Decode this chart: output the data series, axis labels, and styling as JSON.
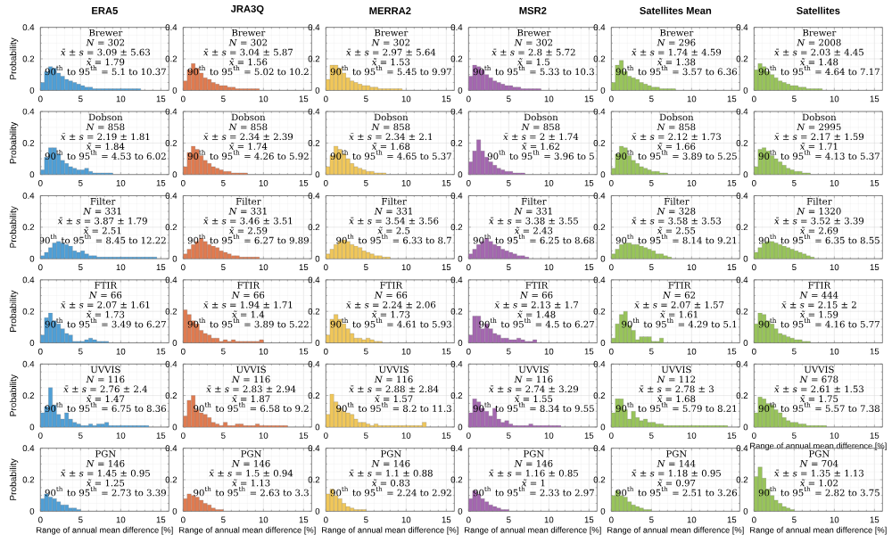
{
  "chart_data": [
    {
      "type": "histogram",
      "title": "ERA5",
      "ylabel": "Probability",
      "annotations": [
        "Brewer",
        "*N* = 302",
        "*x̄* ± *s* = 3.09 ± 5.63",
        "*x̃* = 1.79",
        "90$^{th}$ to 95$^{th}$ = 5.1 to 10.37"
      ],
      "bins": [
        0,
        0.5,
        1,
        1.5,
        2,
        2.5,
        3,
        3.5,
        4,
        4.5,
        5,
        5.5,
        6,
        6.5,
        7,
        7.5,
        8,
        8.5,
        9,
        9.5,
        10,
        10.5,
        11,
        11.5,
        12,
        12.5
      ],
      "values": [
        0.05,
        0.12,
        0.15,
        0.14,
        0.11,
        0.09,
        0.07,
        0.06,
        0.05,
        0.04,
        0.03,
        0.02,
        0.02,
        0.01,
        0.01,
        0.01,
        0.01,
        0.01,
        0.01,
        0.01,
        0.01,
        0.01,
        0.01,
        0.01,
        0.01
      ],
      "color": "#4f9fd6",
      "xlim": [
        0,
        16
      ],
      "ylim": [
        0,
        0.4
      ],
      "xticks": [
        0,
        5,
        10,
        15
      ],
      "yticks": [
        0,
        0.2,
        0.4
      ],
      "grid": true
    },
    {
      "type": "histogram",
      "title": "JRA3Q",
      "annotations": [
        "Brewer",
        "*N* = 302",
        "*x̄* ± *s* = 3.04 ± 5.87",
        "*x̃* = 1.56",
        "90$^{th}$ to 95$^{th}$ = 5.02 to 10.2"
      ],
      "bins": [
        0,
        0.5,
        1,
        1.5,
        2,
        2.5,
        3,
        3.5,
        4,
        4.5,
        5,
        5.5,
        6,
        6.5,
        7,
        7.5,
        8,
        8.5,
        9,
        9.5
      ],
      "values": [
        0.06,
        0.13,
        0.17,
        0.14,
        0.11,
        0.08,
        0.07,
        0.05,
        0.04,
        0.03,
        0.03,
        0.02,
        0.02,
        0.01,
        0.01,
        0.01,
        0.01,
        0.01,
        0.01
      ],
      "color": "#e07b50",
      "xlim": [
        0,
        16
      ],
      "ylim": [
        0,
        0.4
      ],
      "xticks": [
        0,
        5,
        10,
        15
      ],
      "yticks": [
        0,
        0.2,
        0.4
      ],
      "grid": true
    },
    {
      "type": "histogram",
      "title": "MERRA2",
      "annotations": [
        "Brewer",
        "*N* = 302",
        "*x̄* ± *s* = 2.97 ± 5.64",
        "*x̃* = 1.53",
        "90$^{th}$ to 95$^{th}$ = 5.45 to 9.97"
      ],
      "bins": [
        0,
        0.5,
        1,
        1.5,
        2,
        2.5,
        3,
        3.5,
        4,
        4.5,
        5,
        5.5,
        6,
        6.5,
        7,
        7.5,
        8,
        8.5,
        9,
        9.5
      ],
      "values": [
        0.07,
        0.16,
        0.16,
        0.14,
        0.11,
        0.08,
        0.06,
        0.05,
        0.04,
        0.03,
        0.03,
        0.02,
        0.02,
        0.01,
        0.01,
        0.01,
        0.01,
        0.01,
        0.01
      ],
      "color": "#f0c75a",
      "xlim": [
        0,
        16
      ],
      "ylim": [
        0,
        0.4
      ],
      "xticks": [
        0,
        5,
        10,
        15
      ],
      "yticks": [
        0,
        0.2,
        0.4
      ],
      "grid": true
    },
    {
      "type": "histogram",
      "title": "MSR2",
      "annotations": [
        "Brewer",
        "*N* = 302",
        "*x̄* ± *s* = 2.8 ± 5.72",
        "*x̃* = 1.5",
        "90$^{th}$ to 95$^{th}$ = 5.33 to 10.3"
      ],
      "bins": [
        0,
        0.5,
        1,
        1.5,
        2,
        2.5,
        3,
        3.5,
        4,
        4.5,
        5,
        5.5,
        6,
        6.5,
        7,
        7.5,
        8,
        8.5,
        9
      ],
      "values": [
        0.09,
        0.16,
        0.15,
        0.13,
        0.1,
        0.08,
        0.06,
        0.05,
        0.04,
        0.03,
        0.03,
        0.02,
        0.02,
        0.01,
        0.01,
        0.01,
        0.01,
        0.01
      ],
      "color": "#a467b0",
      "xlim": [
        0,
        16
      ],
      "ylim": [
        0,
        0.4
      ],
      "xticks": [
        0,
        5,
        10,
        15
      ],
      "yticks": [
        0,
        0.2,
        0.4
      ],
      "grid": true
    },
    {
      "type": "histogram",
      "title": "Satellites Mean",
      "annotations": [
        "Brewer",
        "*N* = 296",
        "*x̄* ± *s* = 1.74 ± 4.59",
        "*x̃* = 1.38",
        "90$^{th}$ to 95$^{th}$ = 3.57 to 6.36"
      ],
      "bins": [
        0,
        0.5,
        1,
        1.5,
        2,
        2.5,
        3,
        3.5,
        4,
        4.5,
        5,
        5.5,
        6,
        6.5,
        7,
        7.5,
        8
      ],
      "values": [
        0.05,
        0.16,
        0.19,
        0.12,
        0.09,
        0.08,
        0.07,
        0.05,
        0.04,
        0.03,
        0.02,
        0.02,
        0.01,
        0.01,
        0.01,
        0.01
      ],
      "color": "#98c45a",
      "xlim": [
        0,
        16
      ],
      "ylim": [
        0,
        0.4
      ],
      "xticks": [
        0,
        5,
        10,
        15
      ],
      "yticks": [
        0,
        0.2,
        0.4
      ],
      "grid": true
    },
    {
      "type": "histogram",
      "title": "Satellites",
      "annotations": [
        "Brewer",
        "*N* = 2008",
        "*x̄* ± *s* = 2.03 ± 4.45",
        "*x̃* = 1.48",
        "90$^{th}$ to 95$^{th}$ = 4.64 to 7.17"
      ],
      "bins": [
        0,
        0.5,
        1,
        1.5,
        2,
        2.5,
        3,
        3.5,
        4,
        4.5,
        5,
        5.5,
        6,
        6.5,
        7,
        7.5,
        8,
        8.5
      ],
      "values": [
        0.13,
        0.17,
        0.15,
        0.12,
        0.1,
        0.08,
        0.06,
        0.05,
        0.04,
        0.03,
        0.03,
        0.02,
        0.02,
        0.01,
        0.01,
        0.01,
        0.01
      ],
      "color": "#98c45a",
      "xlim": [
        0,
        16
      ],
      "ylim": [
        0,
        0.4
      ],
      "xticks": [
        0,
        5,
        10,
        15
      ],
      "yticks": [
        0,
        0.2,
        0.4
      ],
      "grid": true
    },
    {
      "type": "histogram",
      "ylabel": "Probability",
      "annotations": [
        "Dobson",
        "*N* = 858",
        "*x̄* ± *s* = 2.19 ± 1.81",
        "*x̃* = 1.84",
        "90$^{th}$ to 95$^{th}$ = 4.53 to 6.02"
      ],
      "bins": [
        0,
        0.5,
        1,
        1.5,
        2,
        2.5,
        3,
        3.5,
        4,
        4.5,
        5,
        5.5,
        6,
        6.5,
        7,
        7.5,
        8,
        8.5,
        9
      ],
      "values": [
        0.03,
        0.11,
        0.17,
        0.17,
        0.13,
        0.09,
        0.07,
        0.05,
        0.04,
        0.03,
        0.03,
        0.04,
        0.02,
        0.01,
        0.01,
        0.01,
        0.01,
        0.01
      ],
      "color": "#4f9fd6",
      "xlim": [
        0,
        16
      ],
      "ylim": [
        0,
        0.4
      ],
      "xticks": [
        0,
        5,
        10,
        15
      ],
      "yticks": [
        0,
        0.2,
        0.4
      ],
      "grid": true
    },
    {
      "type": "histogram",
      "annotations": [
        "Dobson",
        "*N* = 858",
        "*x̄* ± *s* = 2.34 ± 2.39",
        "*x̃* = 1.74",
        "90$^{th}$ to 95$^{th}$ = 4.26 to 5.92"
      ],
      "bins": [
        0,
        0.5,
        1,
        1.5,
        2,
        2.5,
        3,
        3.5,
        4,
        4.5,
        5,
        5.5,
        6,
        6.5,
        7,
        7.5,
        8
      ],
      "values": [
        0.05,
        0.14,
        0.18,
        0.16,
        0.12,
        0.09,
        0.07,
        0.05,
        0.04,
        0.03,
        0.02,
        0.02,
        0.01,
        0.01,
        0.01,
        0.01
      ],
      "color": "#e07b50",
      "xlim": [
        0,
        16
      ],
      "ylim": [
        0,
        0.4
      ],
      "xticks": [
        0,
        5,
        10,
        15
      ],
      "yticks": [
        0,
        0.2,
        0.4
      ],
      "grid": true
    },
    {
      "type": "histogram",
      "annotations": [
        "Dobson",
        "*N* = 858",
        "*x̄* ± *s* = 2.34 ± 2.1",
        "*x̃* = 1.68",
        "90$^{th}$ to 95$^{th}$ = 4.65 to 5.37"
      ],
      "bins": [
        0,
        0.5,
        1,
        1.5,
        2,
        2.5,
        3,
        3.5,
        4,
        4.5,
        5,
        5.5,
        6,
        6.5,
        7,
        7.5
      ],
      "values": [
        0.05,
        0.12,
        0.18,
        0.16,
        0.13,
        0.1,
        0.07,
        0.05,
        0.04,
        0.03,
        0.02,
        0.02,
        0.01,
        0.01,
        0.01
      ],
      "color": "#f0c75a",
      "xlim": [
        0,
        16
      ],
      "ylim": [
        0,
        0.4
      ],
      "xticks": [
        0,
        5,
        10,
        15
      ],
      "yticks": [
        0,
        0.2,
        0.4
      ],
      "grid": true
    },
    {
      "type": "histogram",
      "annotations": [
        "Dobson",
        "*N* = 858",
        "*x̄* ± *s* = 2 ± 1.74",
        "*x̃* = 1.62",
        "90$^{th}$ to 95$^{th}$ = 3.96 to 5"
      ],
      "bins": [
        0,
        0.5,
        1,
        1.5,
        2,
        2.5,
        3,
        3.5,
        4,
        4.5,
        5,
        5.5,
        6,
        6.5,
        7
      ],
      "values": [
        0.08,
        0.15,
        0.22,
        0.15,
        0.11,
        0.08,
        0.06,
        0.04,
        0.03,
        0.02,
        0.02,
        0.01,
        0.01,
        0.01
      ],
      "color": "#a467b0",
      "xlim": [
        0,
        16
      ],
      "ylim": [
        0,
        0.4
      ],
      "xticks": [
        0,
        5,
        10,
        15
      ],
      "yticks": [
        0,
        0.2,
        0.4
      ],
      "grid": true
    },
    {
      "type": "histogram",
      "annotations": [
        "Dobson",
        "*N* = 858",
        "*x̄* ± *s* = 2.12 ± 1.73",
        "*x̃* = 1.66",
        "90$^{th}$ to 95$^{th}$ = 3.89 to 5.25"
      ],
      "bins": [
        0,
        0.5,
        1,
        1.5,
        2,
        2.5,
        3,
        3.5,
        4,
        4.5,
        5,
        5.5,
        6,
        6.5,
        7
      ],
      "values": [
        0.04,
        0.13,
        0.18,
        0.17,
        0.12,
        0.09,
        0.07,
        0.05,
        0.04,
        0.03,
        0.02,
        0.02,
        0.01,
        0.01
      ],
      "color": "#98c45a",
      "xlim": [
        0,
        16
      ],
      "ylim": [
        0,
        0.4
      ],
      "xticks": [
        0,
        5,
        10,
        15
      ],
      "yticks": [
        0,
        0.2,
        0.4
      ],
      "grid": true
    },
    {
      "type": "histogram",
      "annotations": [
        "Dobson",
        "*N* = 2995",
        "*x̄* ± *s* = 2.17 ± 1.59",
        "*x̃* = 1.71",
        "90$^{th}$ to 95$^{th}$ = 4.13 to 5.37"
      ],
      "bins": [
        0,
        0.5,
        1,
        1.5,
        2,
        2.5,
        3,
        3.5,
        4,
        4.5,
        5,
        5.5,
        6,
        6.5,
        7
      ],
      "values": [
        0.05,
        0.16,
        0.17,
        0.15,
        0.12,
        0.1,
        0.08,
        0.06,
        0.04,
        0.03,
        0.02,
        0.02,
        0.01,
        0.01
      ],
      "color": "#98c45a",
      "xlim": [
        0,
        16
      ],
      "ylim": [
        0,
        0.4
      ],
      "xticks": [
        0,
        5,
        10,
        15
      ],
      "yticks": [
        0,
        0.2,
        0.4
      ],
      "grid": true
    },
    {
      "type": "histogram",
      "ylabel": "Probability",
      "annotations": [
        "Filter",
        "*N* = 331",
        "*x̄* ± *s* = 3.87 ± 1.79",
        "*x̃* = 2.51",
        "90$^{th}$ to 95$^{th}$ = 8.45 to 12.22"
      ],
      "bins": [
        0,
        0.5,
        1,
        1.5,
        2,
        2.5,
        3,
        3.5,
        4,
        4.5,
        5,
        5.5,
        6,
        6.5,
        7,
        7.5,
        8,
        8.5,
        9,
        9.5,
        10,
        10.5,
        11,
        11.5,
        12,
        12.5,
        13,
        13.5,
        14,
        14.5
      ],
      "values": [
        0.02,
        0.04,
        0.07,
        0.1,
        0.11,
        0.1,
        0.09,
        0.08,
        0.05,
        0.04,
        0.05,
        0.03,
        0.02,
        0.02,
        0.01,
        0.01,
        0.01,
        0.01,
        0.01,
        0.01,
        0.01,
        0.01,
        0.01,
        0.01,
        0.01,
        0.01,
        0.01,
        0.01,
        0.01
      ],
      "color": "#4f9fd6",
      "xlim": [
        0,
        16
      ],
      "ylim": [
        0,
        0.4
      ],
      "xticks": [
        0,
        5,
        10,
        15
      ],
      "yticks": [
        0,
        0.2,
        0.4
      ],
      "grid": true
    },
    {
      "type": "histogram",
      "annotations": [
        "Filter",
        "*N* = 331",
        "*x̄* ± *s* = 3.46 ± 3.51",
        "*x̃* = 2.59",
        "90$^{th}$ to 95$^{th}$ = 6.27 to 9.89"
      ],
      "bins": [
        0,
        0.5,
        1,
        1.5,
        2,
        2.5,
        3,
        3.5,
        4,
        4.5,
        5,
        5.5,
        6,
        6.5,
        7,
        7.5,
        8,
        8.5,
        9,
        9.5
      ],
      "values": [
        0.03,
        0.06,
        0.09,
        0.11,
        0.13,
        0.11,
        0.09,
        0.08,
        0.07,
        0.05,
        0.04,
        0.03,
        0.02,
        0.02,
        0.01,
        0.01,
        0.01,
        0.01,
        0.01
      ],
      "color": "#e07b50",
      "xlim": [
        0,
        16
      ],
      "ylim": [
        0,
        0.4
      ],
      "xticks": [
        0,
        5,
        10,
        15
      ],
      "yticks": [
        0,
        0.2,
        0.4
      ],
      "grid": true
    },
    {
      "type": "histogram",
      "annotations": [
        "Filter",
        "*N* = 331",
        "*x̄* ± *s* = 3.54 ± 3.56",
        "*x̃* = 2.5",
        "90$^{th}$ to 95$^{th}$ = 6.33 to 8.7"
      ],
      "bins": [
        0,
        0.5,
        1,
        1.5,
        2,
        2.5,
        3,
        3.5,
        4,
        4.5,
        5,
        5.5,
        6,
        6.5,
        7,
        7.5,
        8
      ],
      "values": [
        0.03,
        0.06,
        0.09,
        0.11,
        0.12,
        0.11,
        0.09,
        0.08,
        0.07,
        0.05,
        0.04,
        0.03,
        0.02,
        0.02,
        0.01,
        0.01
      ],
      "color": "#f0c75a",
      "xlim": [
        0,
        16
      ],
      "ylim": [
        0,
        0.4
      ],
      "xticks": [
        0,
        5,
        10,
        15
      ],
      "yticks": [
        0,
        0.2,
        0.4
      ],
      "grid": true
    },
    {
      "type": "histogram",
      "annotations": [
        "Filter",
        "*N* = 331",
        "*x̄* ± *s* = 3.38 ± 3.55",
        "*x̃* = 2.43",
        "90$^{th}$ to 95$^{th}$ = 6.25 to 8.68"
      ],
      "bins": [
        0,
        0.5,
        1,
        1.5,
        2,
        2.5,
        3,
        3.5,
        4,
        4.5,
        5,
        5.5,
        6,
        6.5,
        7,
        7.5
      ],
      "values": [
        0.03,
        0.06,
        0.09,
        0.11,
        0.13,
        0.11,
        0.09,
        0.08,
        0.06,
        0.05,
        0.04,
        0.03,
        0.02,
        0.02,
        0.01
      ],
      "color": "#a467b0",
      "xlim": [
        0,
        16
      ],
      "ylim": [
        0,
        0.4
      ],
      "xticks": [
        0,
        5,
        10,
        15
      ],
      "yticks": [
        0,
        0.2,
        0.4
      ],
      "grid": true
    },
    {
      "type": "histogram",
      "annotations": [
        "Filter",
        "*N* = 328",
        "*x̄* ± *s* = 3.58 ± 3.53",
        "*x̃* = 2.55",
        "90$^{th}$ to 95$^{th}$ = 8.14 to 9.21"
      ],
      "bins": [
        0,
        0.5,
        1,
        1.5,
        2,
        2.5,
        3,
        3.5,
        4,
        4.5,
        5,
        5.5,
        6,
        6.5,
        7,
        7.5
      ],
      "values": [
        0.03,
        0.06,
        0.09,
        0.1,
        0.1,
        0.09,
        0.09,
        0.08,
        0.07,
        0.06,
        0.05,
        0.03,
        0.03,
        0.02,
        0.01
      ],
      "color": "#98c45a",
      "xlim": [
        0,
        16
      ],
      "ylim": [
        0,
        0.4
      ],
      "xticks": [
        0,
        5,
        10,
        15
      ],
      "yticks": [
        0,
        0.2,
        0.4
      ],
      "grid": true
    },
    {
      "type": "histogram",
      "annotations": [
        "Filter",
        "*N* = 1320",
        "*x̄* ± *s* = 3.52 ± 3.39",
        "*x̃* = 2.69",
        "90$^{th}$ to 95$^{th}$ = 6.35 to 8.55"
      ],
      "bins": [
        0,
        0.5,
        1,
        1.5,
        2,
        2.5,
        3,
        3.5,
        4,
        4.5,
        5,
        5.5,
        6,
        6.5,
        7,
        7.5
      ],
      "values": [
        0.04,
        0.07,
        0.1,
        0.11,
        0.11,
        0.1,
        0.09,
        0.08,
        0.07,
        0.06,
        0.05,
        0.04,
        0.03,
        0.02,
        0.01
      ],
      "color": "#98c45a",
      "xlim": [
        0,
        16
      ],
      "ylim": [
        0,
        0.4
      ],
      "xticks": [
        0,
        5,
        10,
        15
      ],
      "yticks": [
        0,
        0.2,
        0.4
      ],
      "grid": true
    },
    {
      "type": "histogram",
      "ylabel": "Probability",
      "annotations": [
        "FTIR",
        "*N* = 66",
        "*x̄* ± *s* = 2.07 ± 1.61",
        "*x̃* = 1.73",
        "90$^{th}$ to 95$^{th}$ = 3.49 to 6.27"
      ],
      "bins": [
        0,
        0.5,
        1,
        1.5,
        2,
        2.5,
        3,
        3.5,
        4,
        4.5,
        5,
        5.5,
        6,
        6.5,
        7,
        7.5,
        8,
        8.5
      ],
      "values": [
        0.05,
        0.16,
        0.19,
        0.14,
        0.12,
        0.09,
        0.06,
        0.05,
        0.01,
        0.01,
        0.01,
        0.02,
        0.03,
        0.02,
        0.01,
        0.01,
        0.01
      ],
      "color": "#4f9fd6",
      "xlim": [
        0,
        16
      ],
      "ylim": [
        0,
        0.4
      ],
      "xticks": [
        0,
        5,
        10,
        15
      ],
      "yticks": [
        0,
        0.2,
        0.4
      ],
      "grid": true
    },
    {
      "type": "histogram",
      "annotations": [
        "FTIR",
        "*N* = 66",
        "*x̄* ± *s* = 1.94 ± 1.71",
        "*x̃* = 1.4",
        "90$^{th}$ to 95$^{th}$ = 3.89 to 5.22"
      ],
      "bins": [
        0,
        0.5,
        1,
        1.5,
        2,
        2.5,
        3,
        3.5,
        4,
        4.5,
        5,
        5.5,
        6,
        6.5,
        7,
        7.5,
        8,
        8.5,
        9,
        9.5,
        10
      ],
      "values": [
        0.21,
        0.18,
        0.14,
        0.12,
        0.08,
        0.06,
        0.05,
        0.03,
        0.03,
        0.01,
        0.02,
        0.01,
        0.02,
        0.01,
        0.01,
        0.01,
        0.01,
        0.01,
        0.01,
        0.02
      ],
      "color": "#e07b50",
      "xlim": [
        0,
        16
      ],
      "ylim": [
        0,
        0.4
      ],
      "xticks": [
        0,
        5,
        10,
        15
      ],
      "yticks": [
        0,
        0.2,
        0.4
      ],
      "grid": true
    },
    {
      "type": "histogram",
      "annotations": [
        "FTIR",
        "*N* = 66",
        "*x̄* ± *s* = 2.24 ± 2.06",
        "*x̃* = 1.73",
        "90$^{th}$ to 95$^{th}$ = 4.61 to 5.93"
      ],
      "bins": [
        0,
        0.5,
        1,
        1.5,
        2,
        2.5,
        3,
        3.5,
        4,
        4.5,
        5,
        5.5,
        6,
        6.5,
        7
      ],
      "values": [
        0.05,
        0.15,
        0.18,
        0.15,
        0.12,
        0.09,
        0.06,
        0.03,
        0.03,
        0.02,
        0.03,
        0.02,
        0.01,
        0.01
      ],
      "color": "#f0c75a",
      "xlim": [
        0,
        16
      ],
      "ylim": [
        0,
        0.4
      ],
      "xticks": [
        0,
        5,
        10,
        15
      ],
      "yticks": [
        0,
        0.2,
        0.4
      ],
      "grid": true
    },
    {
      "type": "histogram",
      "annotations": [
        "FTIR",
        "*N* = 66",
        "*x̄* ± *s* = 2.13 ± 1.7",
        "*x̃* = 1.48",
        "90$^{th}$ to 95$^{th}$ = 4.5 to 6.27"
      ],
      "bins": [
        0,
        0.5,
        1,
        1.5,
        2,
        2.5,
        3,
        3.5,
        4,
        4.5,
        5,
        5.5,
        6,
        6.5,
        7,
        7.5,
        8,
        8.5
      ],
      "values": [
        0.05,
        0.17,
        0.17,
        0.09,
        0.12,
        0.09,
        0.06,
        0.05,
        0.03,
        0.03,
        0.02,
        0.02,
        0.03,
        0.02,
        0.01,
        0.01,
        0.02
      ],
      "color": "#a467b0",
      "xlim": [
        0,
        16
      ],
      "ylim": [
        0,
        0.4
      ],
      "xticks": [
        0,
        5,
        10,
        15
      ],
      "yticks": [
        0,
        0.2,
        0.4
      ],
      "grid": true
    },
    {
      "type": "histogram",
      "annotations": [
        "FTIR",
        "*N* = 62",
        "*x̄* ± *s* = 2.07 ± 1.57",
        "*x̃* = 1.61",
        "90$^{th}$ to 95$^{th}$ = 4.29 to 5.1"
      ],
      "bins": [
        0,
        0.5,
        1,
        1.5,
        2,
        2.5,
        3,
        3.5,
        4,
        4.5,
        5,
        5.5,
        6,
        6.5
      ],
      "values": [
        0.03,
        0.12,
        0.18,
        0.2,
        0.11,
        0.08,
        0.02,
        0.04,
        0.04,
        0.04,
        0.01,
        0.01,
        0.03
      ],
      "color": "#98c45a",
      "xlim": [
        0,
        16
      ],
      "ylim": [
        0,
        0.4
      ],
      "xticks": [
        0,
        5,
        10,
        15
      ],
      "yticks": [
        0,
        0.2,
        0.4
      ],
      "grid": true
    },
    {
      "type": "histogram",
      "annotations": [
        "FTIR",
        "*N* = 444",
        "*x̄* ± *s* = 2.15 ± 2",
        "*x̃* = 1.59",
        "90$^{th}$ to 95$^{th}$ = 4.16 to 5.77"
      ],
      "bins": [
        0,
        0.5,
        1,
        1.5,
        2,
        2.5,
        3,
        3.5,
        4,
        4.5,
        5,
        5.5,
        6,
        6.5,
        7
      ],
      "values": [
        0.12,
        0.19,
        0.18,
        0.14,
        0.12,
        0.09,
        0.06,
        0.05,
        0.04,
        0.03,
        0.02,
        0.02,
        0.01,
        0.01
      ],
      "color": "#98c45a",
      "xlim": [
        0,
        16
      ],
      "ylim": [
        0,
        0.4
      ],
      "xticks": [
        0,
        5,
        10,
        15
      ],
      "yticks": [
        0,
        0.2,
        0.4
      ],
      "grid": true
    },
    {
      "type": "histogram",
      "ylabel": "Probability",
      "annotations": [
        "UVVIS",
        "*N* = 116",
        "*x̄* ± *s* = 2.76 ± 2.4",
        "*x̃* = 1.47",
        "90$^{th}$ to 95$^{th}$ = 6.75 to 8.36"
      ],
      "bins": [
        0,
        0.5,
        1,
        1.5,
        2,
        2.5,
        3,
        3.5,
        4,
        4.5,
        5,
        5.5,
        6,
        6.5,
        7,
        7.5,
        8,
        8.5,
        9,
        9.5,
        10,
        10.5,
        11,
        11.5,
        12,
        12.5,
        13,
        13.5
      ],
      "values": [
        0.09,
        0.13,
        0.25,
        0.14,
        0.08,
        0.05,
        0.09,
        0.05,
        0.03,
        0.02,
        0.01,
        0.01,
        0.02,
        0.01,
        0.02,
        0.02,
        0.03,
        0.01,
        0.01,
        0.01,
        0.01,
        0.01,
        0.01,
        0.01,
        0.01,
        0.01,
        0.01
      ],
      "color": "#4f9fd6",
      "xlim": [
        0,
        16
      ],
      "ylim": [
        0,
        0.4
      ],
      "xticks": [
        0,
        5,
        10,
        15
      ],
      "yticks": [
        0,
        0.2,
        0.4
      ],
      "grid": true
    },
    {
      "type": "histogram",
      "annotations": [
        "UVVIS",
        "*N* = 116",
        "*x̄* ± *s* = 2.83 ± 2.94",
        "*x̃* = 1.87",
        "90$^{th}$ to 95$^{th}$ = 6.58 to 9.2"
      ],
      "bins": [
        0,
        0.5,
        1,
        1.5,
        2,
        2.5,
        3,
        3.5,
        4,
        4.5,
        5,
        5.5,
        6,
        6.5,
        7,
        7.5,
        8,
        8.5,
        9,
        9.5,
        10,
        10.5,
        11,
        11.5,
        12,
        12.5,
        13
      ],
      "values": [
        0.07,
        0.17,
        0.2,
        0.11,
        0.09,
        0.08,
        0.06,
        0.03,
        0.02,
        0.01,
        0.03,
        0.01,
        0.01,
        0.02,
        0.02,
        0.01,
        0.01,
        0.01,
        0.02,
        0.01,
        0.01,
        0.01,
        0.01,
        0.01,
        0.01,
        0.01
      ],
      "color": "#e07b50",
      "xlim": [
        0,
        16
      ],
      "ylim": [
        0,
        0.4
      ],
      "xticks": [
        0,
        5,
        10,
        15
      ],
      "yticks": [
        0,
        0.2,
        0.4
      ],
      "grid": true
    },
    {
      "type": "histogram",
      "annotations": [
        "UVVIS",
        "*N* = 116",
        "*x̄* ± *s* = 2.88 ± 2.84",
        "*x̃* = 1.57",
        "90$^{th}$ to 95$^{th}$ = 8.2 to 11.3"
      ],
      "bins": [
        0,
        0.5,
        1,
        1.5,
        2,
        2.5,
        3,
        3.5,
        4,
        4.5,
        5,
        5.5,
        6,
        6.5,
        7,
        7.5,
        8,
        8.5,
        9,
        9.5,
        10,
        10.5,
        11,
        11.5,
        12,
        12.5
      ],
      "values": [
        0.08,
        0.21,
        0.16,
        0.12,
        0.1,
        0.09,
        0.08,
        0.05,
        0.03,
        0.03,
        0.02,
        0.01,
        0.02,
        0.01,
        0.01,
        0.01,
        0.01,
        0.01,
        0.01,
        0.01,
        0.01,
        0.01,
        0.01,
        0.01,
        0.03
      ],
      "color": "#f0c75a",
      "xlim": [
        0,
        16
      ],
      "ylim": [
        0,
        0.4
      ],
      "xticks": [
        0,
        5,
        10,
        15
      ],
      "yticks": [
        0,
        0.2,
        0.4
      ],
      "grid": true
    },
    {
      "type": "histogram",
      "annotations": [
        "UVVIS",
        "*N* = 116",
        "*x̄* ± *s* = 2.74 ± 3.29",
        "*x̃* = 1.55",
        "90$^{th}$ to 95$^{th}$ = 8.34 to 9.55"
      ],
      "bins": [
        0,
        0.5,
        1,
        1.5,
        2,
        2.5,
        3,
        3.5,
        4,
        4.5,
        5,
        5.5,
        6,
        6.5,
        7,
        7.5,
        8,
        8.5,
        9,
        9.5,
        10,
        10.5,
        11,
        11.5
      ],
      "values": [
        0.09,
        0.18,
        0.16,
        0.12,
        0.1,
        0.07,
        0.12,
        0.05,
        0.03,
        0.04,
        0.02,
        0.01,
        0.01,
        0.01,
        0.01,
        0.02,
        0.01,
        0.01,
        0.01,
        0.01,
        0.01,
        0.01,
        0.01
      ],
      "color": "#a467b0",
      "xlim": [
        0,
        16
      ],
      "ylim": [
        0,
        0.4
      ],
      "xticks": [
        0,
        5,
        10,
        15
      ],
      "yticks": [
        0,
        0.2,
        0.4
      ],
      "grid": true
    },
    {
      "type": "histogram",
      "annotations": [
        "UVVIS",
        "*N* = 112",
        "*x̄* ± *s* = 2.78 ± 3",
        "*x̃* = 1.68",
        "90$^{th}$ to 95$^{th}$ = 5.79 to 8.21"
      ],
      "bins": [
        0,
        0.5,
        1,
        1.5,
        2,
        2.5,
        3,
        3.5,
        4,
        4.5,
        5,
        5.5,
        6,
        6.5,
        7,
        7.5,
        8,
        8.5,
        9,
        9.5,
        10,
        10.5,
        11,
        11.5,
        12,
        12.5,
        13,
        13.5,
        14,
        14.5
      ],
      "values": [
        0.09,
        0.18,
        0.18,
        0.11,
        0.05,
        0.1,
        0.06,
        0.04,
        0.05,
        0.03,
        0.03,
        0.02,
        0.02,
        0.01,
        0.01,
        0.01,
        0.01,
        0.01,
        0.01,
        0.01,
        0.01,
        0.01,
        0.01,
        0.01,
        0.01,
        0.01,
        0.01,
        0.01,
        0.01
      ],
      "color": "#98c45a",
      "xlim": [
        0,
        16
      ],
      "ylim": [
        0,
        0.4
      ],
      "xticks": [
        0,
        5,
        10,
        15
      ],
      "yticks": [
        0,
        0.2,
        0.4
      ],
      "grid": true
    },
    {
      "type": "histogram",
      "xlabel": "Range of annual mean difference [%]",
      "annotations": [
        "UVVIS",
        "*N* = 678",
        "*x̄* ± *s* = 2.61 ± 1.53",
        "*x̃* = 1.75",
        "90$^{th}$ to 95$^{th}$ = 5.57 to 7.38"
      ],
      "bins": [
        0,
        0.5,
        1,
        1.5,
        2,
        2.5,
        3,
        3.5,
        4,
        4.5,
        5,
        5.5,
        6,
        6.5,
        7,
        7.5,
        8,
        8.5,
        9
      ],
      "values": [
        0.09,
        0.19,
        0.18,
        0.15,
        0.14,
        0.11,
        0.09,
        0.06,
        0.04,
        0.03,
        0.03,
        0.02,
        0.02,
        0.01,
        0.01,
        0.01,
        0.01,
        0.01
      ],
      "color": "#98c45a",
      "xlim": [
        0,
        16
      ],
      "ylim": [
        0,
        0.4
      ],
      "xticks": [
        0,
        5,
        10,
        15
      ],
      "yticks": [
        0,
        0.2,
        0.4
      ],
      "grid": true
    },
    {
      "type": "histogram",
      "xlabel": "Range of annual mean difference [%]",
      "ylabel": "Probability",
      "annotations": [
        "PGN",
        "*N* = 146",
        "*x̄* ± *s* = 1.45 ± 0.95",
        "*x̃* = 1.25",
        "90$^{th}$ to 95$^{th}$ = 2.73 to 3.39"
      ],
      "bins": [
        0,
        0.5,
        1,
        1.5,
        2,
        2.5,
        3,
        3.5,
        4,
        4.5,
        5
      ],
      "values": [
        0.08,
        0.11,
        0.09,
        0.08,
        0.06,
        0.04,
        0.04,
        0.02,
        0.02,
        0.01
      ],
      "color": "#4f9fd6",
      "xlim": [
        0,
        16
      ],
      "ylim": [
        0,
        0.4
      ],
      "xticks": [
        0,
        5,
        10,
        15
      ],
      "yticks": [
        0,
        0.2,
        0.4
      ],
      "grid": true
    },
    {
      "type": "histogram",
      "xlabel": "Range of annual mean difference [%]",
      "annotations": [
        "PGN",
        "*N* = 146",
        "*x̄* ± *s* = 1.5 ± 0.94",
        "*x̃* = 1.13",
        "90$^{th}$ to 95$^{th}$ = 2.63 to 3.3"
      ],
      "bins": [
        0,
        0.5,
        1,
        1.5,
        2,
        2.5,
        3,
        3.5,
        4,
        4.5,
        5
      ],
      "values": [
        0.08,
        0.11,
        0.1,
        0.09,
        0.07,
        0.05,
        0.04,
        0.02,
        0.01,
        0.01
      ],
      "color": "#e07b50",
      "xlim": [
        0,
        16
      ],
      "ylim": [
        0,
        0.4
      ],
      "xticks": [
        0,
        5,
        10,
        15
      ],
      "yticks": [
        0,
        0.2,
        0.4
      ],
      "grid": true
    },
    {
      "type": "histogram",
      "xlabel": "Range of annual mean difference [%]",
      "annotations": [
        "PGN",
        "*N* = 146",
        "*x̄* ± *s* = 1.1 ± 0.88",
        "*x̃* = 0.83",
        "90$^{th}$ to 95$^{th}$ = 2.24 to 2.92"
      ],
      "bins": [
        0,
        0.5,
        1,
        1.5,
        2,
        2.5,
        3,
        3.5,
        4,
        4.5,
        5
      ],
      "values": [
        0.11,
        0.14,
        0.1,
        0.08,
        0.05,
        0.03,
        0.02,
        0.01,
        0.01,
        0.01
      ],
      "color": "#f0c75a",
      "xlim": [
        0,
        16
      ],
      "ylim": [
        0,
        0.4
      ],
      "xticks": [
        0,
        5,
        10,
        15
      ],
      "yticks": [
        0,
        0.2,
        0.4
      ],
      "grid": true
    },
    {
      "type": "histogram",
      "xlabel": "Range of annual mean difference [%]",
      "annotations": [
        "PGN",
        "*N* = 146",
        "*x̄* ± *s* = 1.16 ± 0.85",
        "*x̃* = 1",
        "90$^{th}$ to 95$^{th}$ = 2.33 to 2.97"
      ],
      "bins": [
        0,
        0.5,
        1,
        1.5,
        2,
        2.5,
        3,
        3.5,
        4,
        4.5,
        5
      ],
      "values": [
        0.08,
        0.13,
        0.11,
        0.08,
        0.06,
        0.04,
        0.03,
        0.02,
        0.01,
        0.01
      ],
      "color": "#a467b0",
      "xlim": [
        0,
        16
      ],
      "ylim": [
        0,
        0.4
      ],
      "xticks": [
        0,
        5,
        10,
        15
      ],
      "yticks": [
        0,
        0.2,
        0.4
      ],
      "grid": true
    },
    {
      "type": "histogram",
      "xlabel": "Range of annual mean difference [%]",
      "annotations": [
        "PGN",
        "*N* = 144",
        "*x̄* ± *s* = 1.18 ± 0.95",
        "*x̃* = 0.97",
        "90$^{th}$ to 95$^{th}$ = 2.51 to 3.26"
      ],
      "bins": [
        0,
        0.5,
        1,
        1.5,
        2,
        2.5,
        3,
        3.5,
        4,
        4.5,
        5
      ],
      "values": [
        0.1,
        0.13,
        0.1,
        0.09,
        0.06,
        0.04,
        0.03,
        0.02,
        0.01,
        0.01
      ],
      "color": "#98c45a",
      "xlim": [
        0,
        16
      ],
      "ylim": [
        0,
        0.4
      ],
      "xticks": [
        0,
        5,
        10,
        15
      ],
      "yticks": [
        0,
        0.2,
        0.4
      ],
      "grid": true
    },
    {
      "type": "histogram",
      "xlabel": "Range of annual mean difference [%]",
      "annotations": [
        "PGN",
        "*N* = 704",
        "*x̄* ± *s* = 1.35 ± 1.13",
        "*x̃* = 1.02",
        "90$^{th}$ to 95$^{th}$ = 2.82 to 3.75"
      ],
      "bins": [
        0,
        0.5,
        1,
        1.5,
        2,
        2.5,
        3,
        3.5,
        4,
        4.5,
        5
      ],
      "values": [
        0.22,
        0.28,
        0.21,
        0.14,
        0.1,
        0.07,
        0.05,
        0.03,
        0.02,
        0.01
      ],
      "color": "#98c45a",
      "xlim": [
        0,
        16
      ],
      "ylim": [
        0,
        0.4
      ],
      "xticks": [
        0,
        5,
        10,
        15
      ],
      "yticks": [
        0,
        0.2,
        0.4
      ],
      "grid": true
    }
  ]
}
